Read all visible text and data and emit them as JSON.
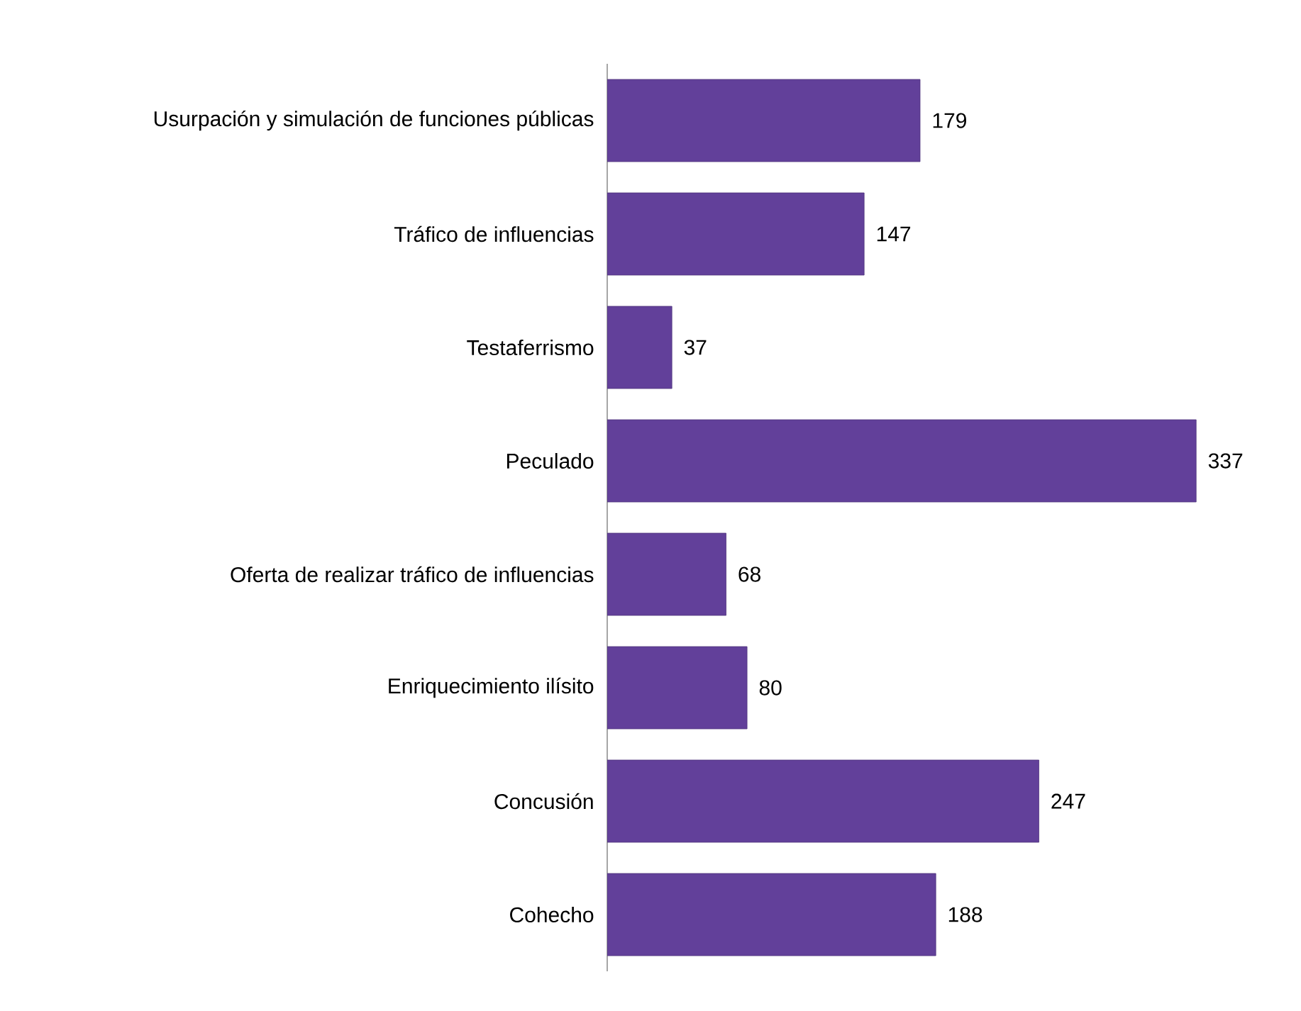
{
  "chart_data": {
    "type": "bar",
    "orientation": "horizontal",
    "categories": [
      "Usurpación y simulación de funciones públicas",
      "Tráfico de influencias",
      "Testaferrismo",
      "Peculado",
      "Oferta de realizar tráfico de influencias",
      "Enriquecimiento ilísito",
      "Concusión",
      "Cohecho"
    ],
    "values": [
      179,
      147,
      37,
      337,
      68,
      80,
      247,
      188
    ],
    "color": "#62409a",
    "data_labels": true,
    "tick_labels": "y"
  }
}
